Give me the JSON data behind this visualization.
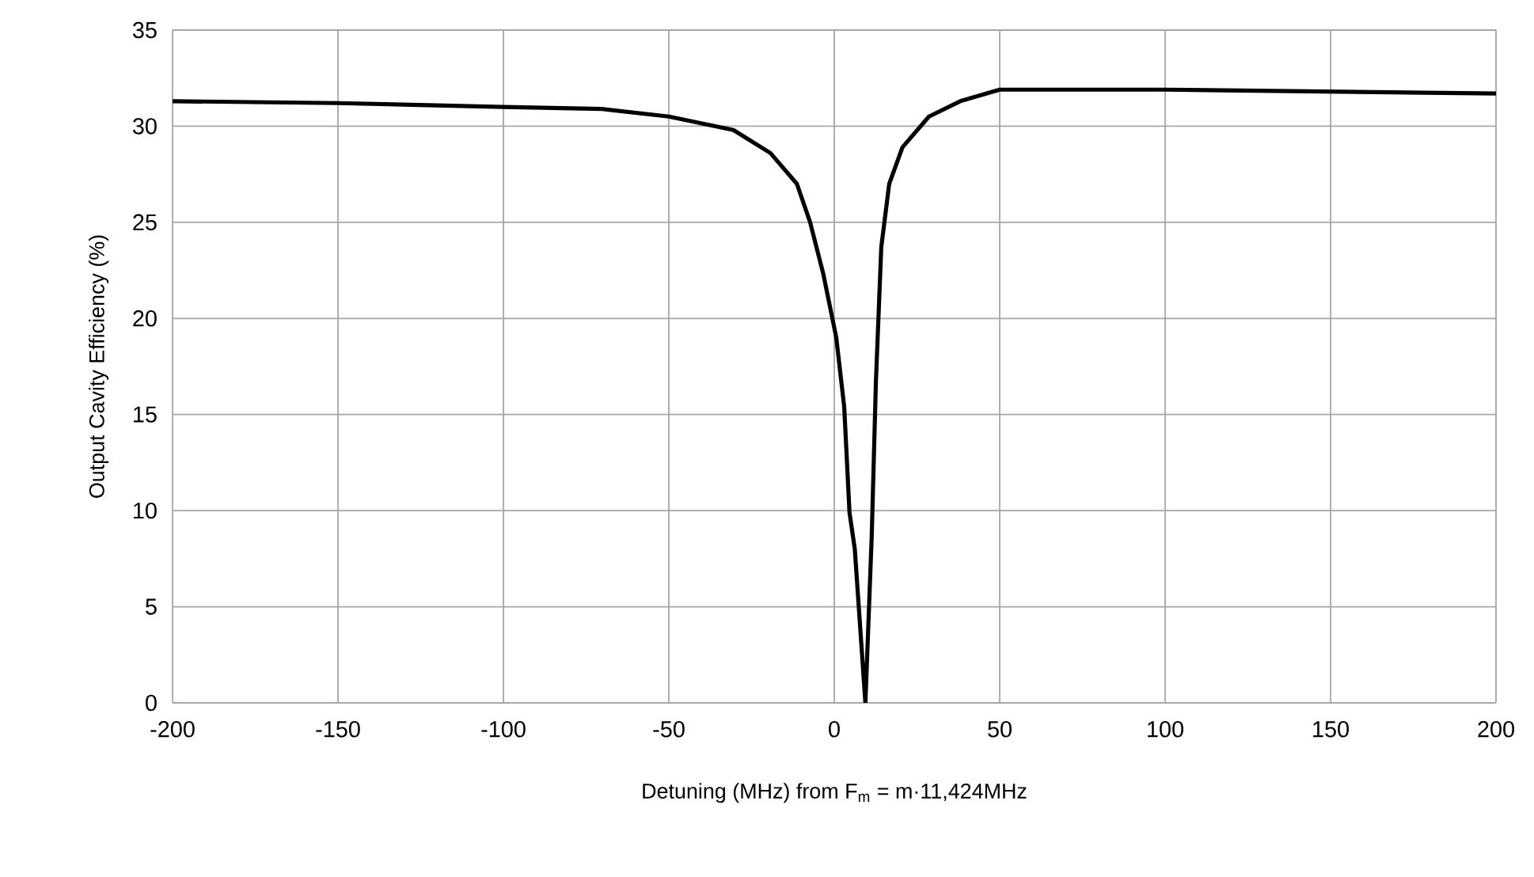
{
  "chart_data": {
    "type": "line",
    "xlabel": "Detuning (MHz) from F$_{m}$ = m·11,424MHz",
    "ylabel": "Output Cavity Efficiency (%)",
    "xlim": [
      -200,
      200
    ],
    "xticks": [
      -200,
      -150,
      -100,
      -50,
      0,
      50,
      100,
      150,
      200
    ],
    "ylim": [
      0,
      35
    ],
    "yticks": [
      0,
      5,
      10,
      15,
      20,
      25,
      30,
      35
    ],
    "grid": true,
    "marker": "none",
    "line_style": "solid",
    "series": [
      {
        "color": "#000000",
        "x": [
          -200,
          -150,
          -100,
          -70.3,
          -50,
          -30.5,
          -19.3,
          -11.3,
          -7.3,
          -3.3,
          0.6,
          3.0,
          4.6,
          6.2,
          9.4,
          11.3,
          12.6,
          14.2,
          16.6,
          20.6,
          28.6,
          38.1,
          50,
          100,
          150,
          200
        ],
        "values": [
          31.3,
          31.2,
          31.0,
          30.9,
          30.5,
          29.8,
          28.6,
          27.0,
          25.0,
          22.3,
          19.0,
          15.4,
          9.9,
          8.0,
          0,
          8.6,
          16.8,
          23.7,
          27.0,
          28.9,
          30.5,
          31.3,
          31.9,
          31.9,
          31.8,
          31.7
        ]
      }
    ]
  }
}
